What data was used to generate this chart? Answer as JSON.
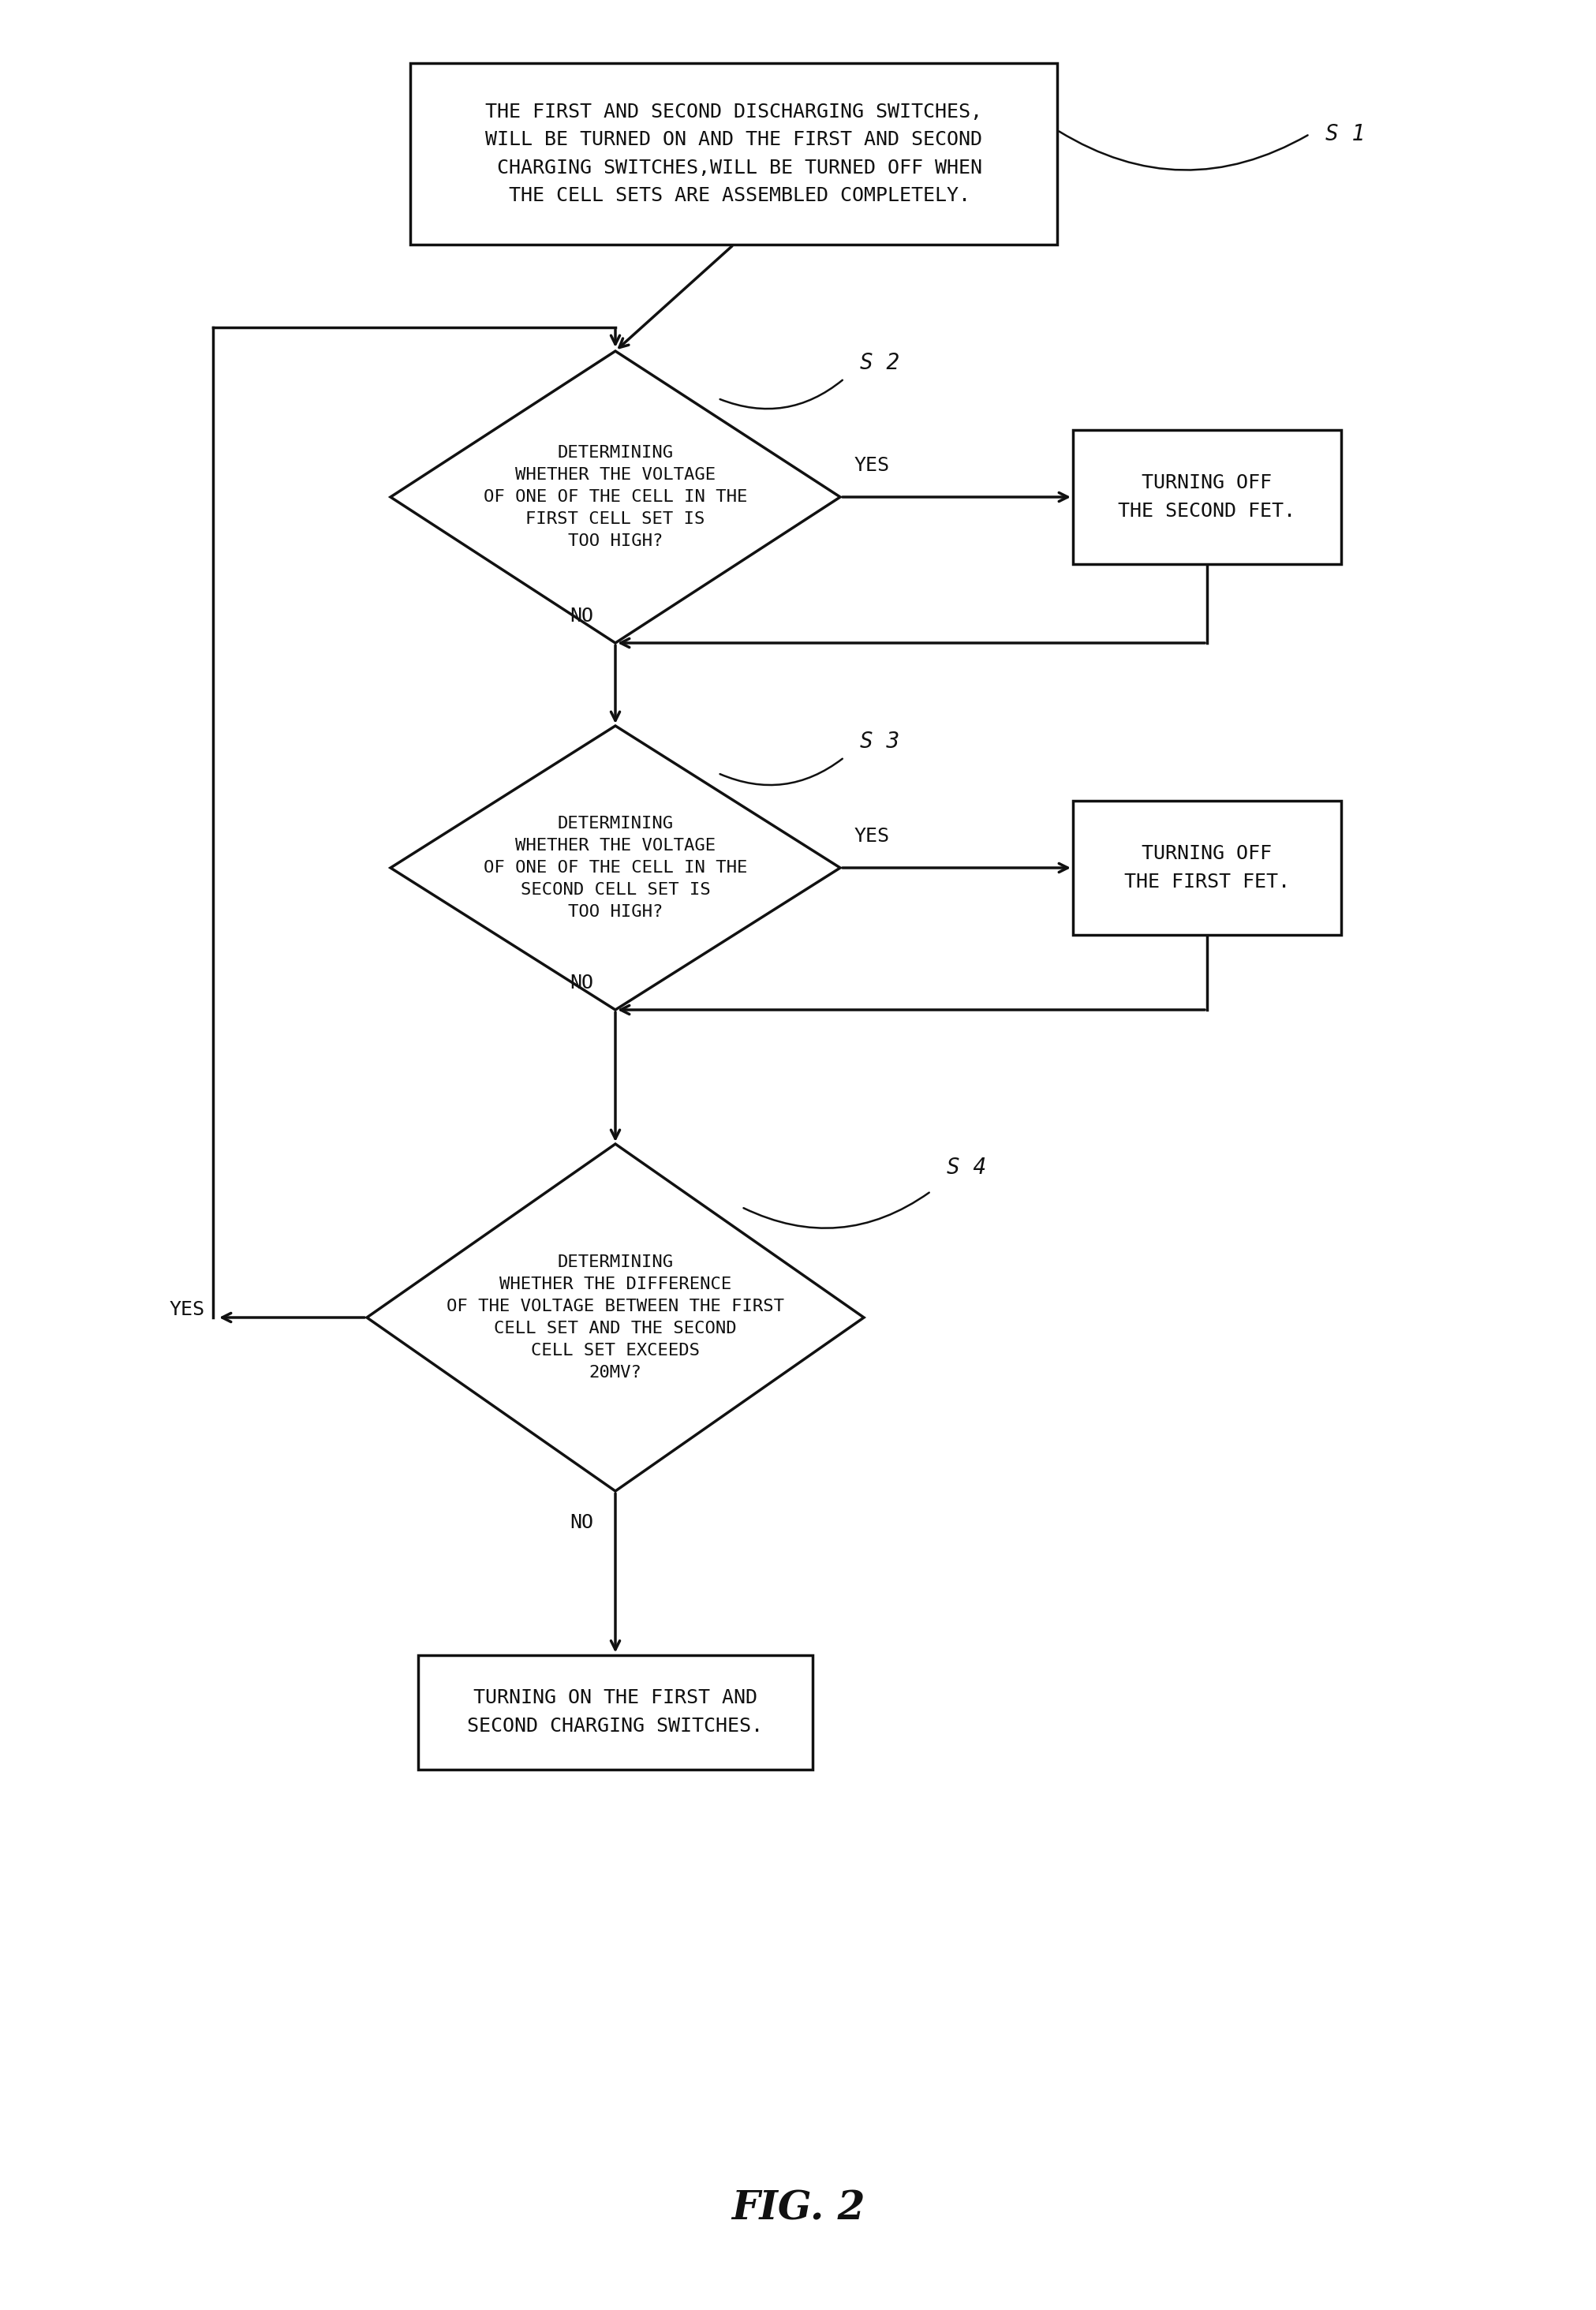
{
  "line_color": "#111111",
  "text_color": "#111111",
  "fig_title": "FIG. 2",
  "s1_label": "S 1",
  "s2_label": "S 2",
  "s3_label": "S 3",
  "s4_label": "S 4",
  "box1_text": "THE FIRST AND SECOND DISCHARGING SWITCHES,\nWILL BE TURNED ON AND THE FIRST AND SECOND\n CHARGING SWITCHES,WILL BE TURNED OFF WHEN\n THE CELL SETS ARE ASSEMBLED COMPLETELY.",
  "diamond1_text": "DETERMINING\nWHETHER THE VOLTAGE\nOF ONE OF THE CELL IN THE\nFIRST CELL SET IS\nTOO HIGH?",
  "box2_text": "TURNING OFF\nTHE SECOND FET.",
  "diamond2_text": "DETERMINING\nWHETHER THE VOLTAGE\nOF ONE OF THE CELL IN THE\nSECOND CELL SET IS\nTOO HIGH?",
  "box3_text": "TURNING OFF\nTHE FIRST FET.",
  "diamond3_text": "DETERMINING\nWHETHER THE DIFFERENCE\nOF THE VOLTAGE BETWEEN THE FIRST\nCELL SET AND THE SECOND\nCELL SET EXCEEDS\n20MV?",
  "box4_text": "TURNING ON THE FIRST AND\nSECOND CHARGING SWITCHES.",
  "font_size_box": 18,
  "font_size_diamond": 16,
  "font_size_label": 20,
  "font_size_title": 36,
  "font_size_yn": 18
}
